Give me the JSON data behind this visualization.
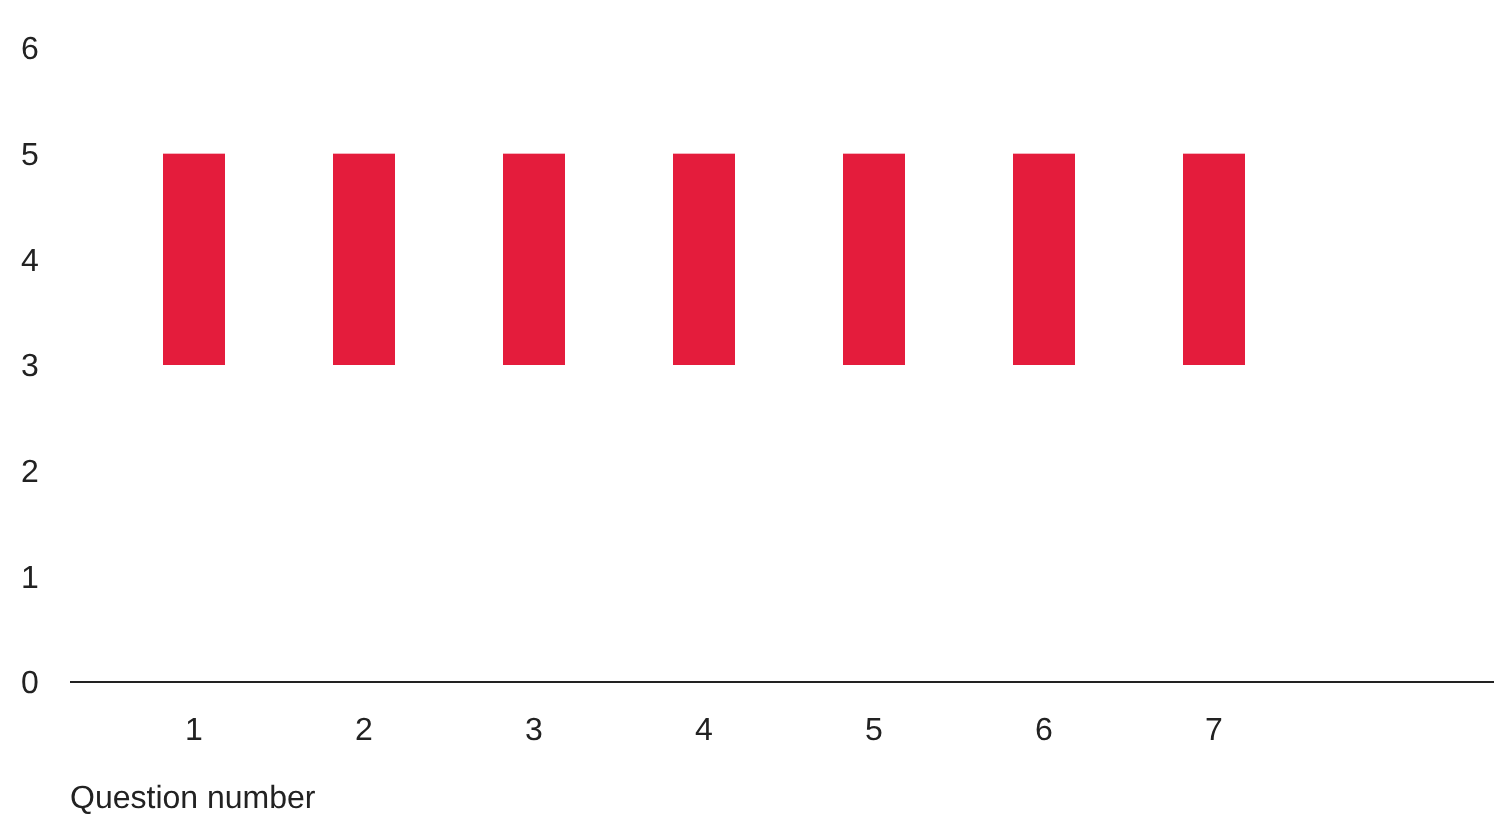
{
  "chart_data": {
    "type": "bar",
    "xlabel": "Question number",
    "categories": [
      "1",
      "2",
      "3",
      "4",
      "5",
      "6",
      "7"
    ],
    "values": [
      2,
      2,
      2,
      2,
      2,
      2,
      2
    ],
    "base": [
      3,
      3,
      3,
      3,
      3,
      3,
      3
    ],
    "color": "#e41c3c",
    "ylim": [
      0,
      6
    ],
    "yticks": [
      0,
      1,
      2,
      3,
      4,
      5,
      6
    ]
  }
}
